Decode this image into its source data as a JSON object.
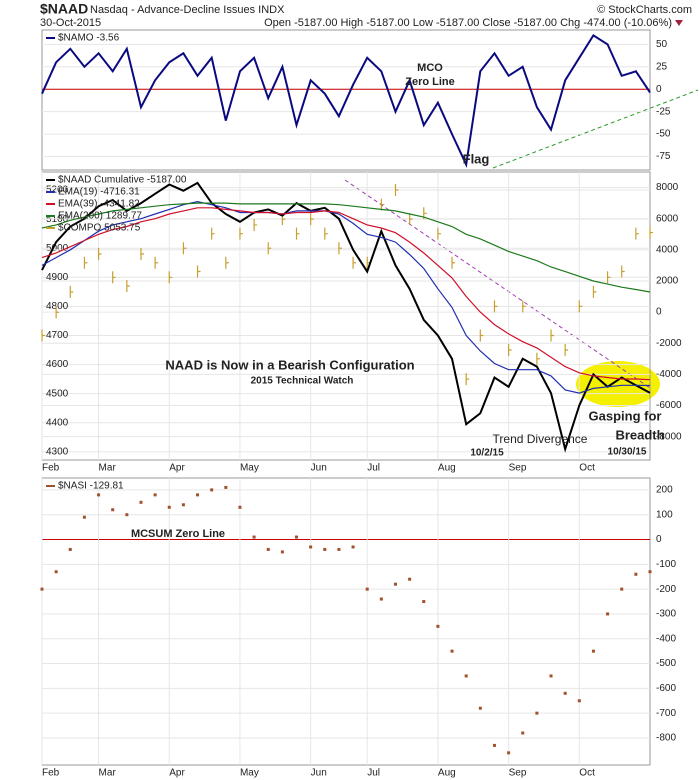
{
  "header": {
    "symbol": "$NAAD",
    "name": "Nasdaq - Advance-Decline Issues INDX",
    "date": "30-Oct-2015",
    "ohlc": "Open -5187.00  High -5187.00  Low -5187.00  Close -5187.00  Chg -474.00 (-10.06%)",
    "credit": "© StockCharts.com"
  },
  "chart_data": [
    {
      "type": "line",
      "grid": true,
      "zero_line_color": "#cc0000",
      "ylim": [
        -90,
        66
      ],
      "yticks": [
        50,
        25,
        0,
        -25,
        -50,
        -75
      ],
      "series": [
        {
          "name": "$NAMO -3.56",
          "color": "#0a0a80",
          "style": "line",
          "values": [
            -5,
            30,
            45,
            25,
            40,
            20,
            45,
            -20,
            10,
            30,
            40,
            15,
            35,
            -35,
            20,
            35,
            -10,
            25,
            -40,
            10,
            -5,
            -30,
            5,
            35,
            20,
            -25,
            10,
            -40,
            -15,
            -50,
            -84,
            20,
            40,
            15,
            25,
            -20,
            -45,
            10,
            35,
            60,
            50,
            15,
            20,
            -3.56
          ]
        }
      ],
      "annotations": [
        {
          "text": "MCO",
          "color": "#cc0000"
        },
        {
          "text": "Zero Line",
          "color": "#cc0000"
        },
        {
          "text": "Flag",
          "color": "#2a8a2a"
        }
      ]
    },
    {
      "type": "line",
      "grid": true,
      "yaxis_side": "left",
      "categories": [
        "Feb",
        null,
        null,
        null,
        "Mar",
        null,
        null,
        null,
        null,
        "Apr",
        null,
        null,
        null,
        null,
        "May",
        null,
        null,
        null,
        null,
        "Jun",
        null,
        null,
        null,
        "Jul",
        null,
        null,
        null,
        null,
        "Aug",
        null,
        null,
        null,
        null,
        "Sep",
        null,
        null,
        null,
        null,
        "Oct",
        null,
        null,
        null,
        null,
        null
      ],
      "ylim": [
        4272,
        5262
      ],
      "yticks": [
        5200,
        5100,
        5000,
        4900,
        4800,
        4700,
        4600,
        4500,
        4400,
        4300
      ],
      "y2lim": [
        -9500,
        9000
      ],
      "y2ticks": [
        8000,
        6000,
        4000,
        2000,
        0,
        -2000,
        -4000,
        -6000,
        -8000
      ],
      "series": [
        {
          "name": "$NAAD Cumulative -5187.00",
          "color": "#000000",
          "style": "line",
          "axis": "y2",
          "values": [
            2700,
            4500,
            5500,
            6000,
            6800,
            7200,
            6500,
            7000,
            7600,
            8200,
            7800,
            8300,
            7000,
            6300,
            5800,
            6400,
            6600,
            6200,
            7000,
            6500,
            6700,
            6000,
            4000,
            2600,
            5200,
            3000,
            1500,
            -500,
            -1500,
            -3000,
            -7200,
            -6500,
            -4200,
            -4800,
            -3000,
            -3500,
            -5200,
            -8800,
            -6000,
            -4000,
            -4800,
            -4200,
            -4700,
            -5187
          ]
        },
        {
          "name": "EMA(19) -4716.31",
          "color": "#1f2fb0",
          "style": "line",
          "axis": "y2",
          "values": [
            3000,
            3500,
            4000,
            4600,
            5200,
            5600,
            5800,
            6000,
            6300,
            6600,
            6900,
            7100,
            6900,
            6700,
            6400,
            6400,
            6400,
            6300,
            6500,
            6500,
            6500,
            6300,
            5700,
            5000,
            4800,
            4500,
            3700,
            2800,
            1500,
            300,
            -1500,
            -2500,
            -3300,
            -3700,
            -3700,
            -3700,
            -4100,
            -5000,
            -5200,
            -4900,
            -4800,
            -4700,
            -4700,
            -4716.31
          ]
        },
        {
          "name": "EMA(39) -4341.82",
          "color": "#d0102a",
          "style": "line",
          "axis": "y2",
          "values": [
            3500,
            3800,
            4200,
            4600,
            5000,
            5300,
            5500,
            5800,
            6000,
            6300,
            6500,
            6700,
            6700,
            6600,
            6500,
            6400,
            6400,
            6300,
            6400,
            6400,
            6500,
            6400,
            6000,
            5600,
            5400,
            5100,
            4500,
            3800,
            3000,
            2200,
            1000,
            0,
            -800,
            -1400,
            -1900,
            -2300,
            -2900,
            -3500,
            -3900,
            -4100,
            -4200,
            -4300,
            -4300,
            -4341.82
          ]
        },
        {
          "name": "EMA(200) 1289.77",
          "color": "#1e7a1e",
          "style": "line",
          "axis": "y2",
          "values": [
            5400,
            5600,
            5900,
            6100,
            6300,
            6500,
            6600,
            6700,
            6800,
            6900,
            6950,
            7000,
            7000,
            7000,
            6950,
            6950,
            6950,
            6950,
            6950,
            6950,
            6950,
            6900,
            6800,
            6700,
            6600,
            6500,
            6300,
            6100,
            5800,
            5500,
            5000,
            4700,
            4300,
            3900,
            3600,
            3300,
            2900,
            2600,
            2300,
            2000,
            1800,
            1600,
            1450,
            1289.77
          ]
        },
        {
          "name": "$COMPO 5053.75",
          "color": "#c8a030",
          "style": "tick",
          "values": [
            4700,
            4780,
            4850,
            4950,
            4980,
            4900,
            4870,
            4980,
            4950,
            4900,
            5000,
            4920,
            5050,
            4950,
            5050,
            5080,
            5000,
            5100,
            5050,
            5100,
            5050,
            5000,
            4950,
            4950,
            5150,
            5200,
            5100,
            5120,
            5050,
            4950,
            4550,
            4700,
            4800,
            4650,
            4800,
            4620,
            4700,
            4650,
            4800,
            4850,
            4900,
            4920,
            5050,
            5053.75
          ]
        }
      ],
      "annotations": [
        {
          "text": "NAAD is Now in a Bearish Configuration",
          "color": "#1a1ab0"
        },
        {
          "text": "2015 Technical Watch",
          "color": "#777777"
        },
        {
          "text": "Trend Divergence",
          "color": "#bbbbbb"
        },
        {
          "text": "10/2/15",
          "color": "#999999"
        },
        {
          "text": "Gasping for",
          "color": "#e020c0"
        },
        {
          "text": "Breadth",
          "color": "#e020c0"
        },
        {
          "text": "10/30/15",
          "color": "#777777"
        }
      ]
    },
    {
      "type": "line",
      "grid": true,
      "zero_line_color": "#cc0000",
      "categories": [
        "Feb",
        null,
        null,
        null,
        "Mar",
        null,
        null,
        null,
        null,
        "Apr",
        null,
        null,
        null,
        null,
        "May",
        null,
        null,
        null,
        null,
        "Jun",
        null,
        null,
        null,
        "Jul",
        null,
        null,
        null,
        null,
        "Aug",
        null,
        null,
        null,
        null,
        "Sep",
        null,
        null,
        null,
        null,
        "Oct",
        null,
        null,
        null,
        null,
        null
      ],
      "ylim": [
        -909,
        248
      ],
      "yticks": [
        200,
        100,
        0,
        -100,
        -200,
        -300,
        -400,
        -500,
        -600,
        -700,
        -800
      ],
      "series": [
        {
          "name": "$NASI -129.81",
          "color": "#a0522d",
          "style": "dot",
          "values": [
            -200,
            -130,
            -40,
            90,
            180,
            120,
            100,
            150,
            180,
            130,
            140,
            180,
            200,
            210,
            130,
            10,
            -40,
            -50,
            10,
            -30,
            -40,
            -40,
            -30,
            -200,
            -240,
            -180,
            -160,
            -250,
            -350,
            -450,
            -550,
            -680,
            -830,
            -860,
            -780,
            -700,
            -550,
            -620,
            -650,
            -450,
            -300,
            -200,
            -140,
            -129.81
          ]
        }
      ],
      "annotations": [
        {
          "text": "MCSUM Zero Line",
          "color": "#cc0000"
        }
      ]
    }
  ]
}
